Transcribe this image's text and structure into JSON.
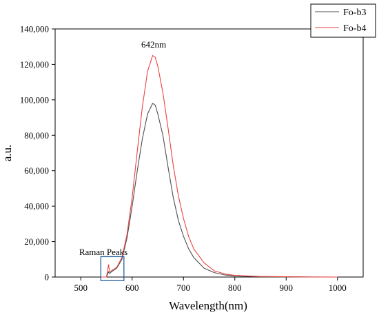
{
  "chart_data": {
    "type": "line",
    "xlabel": "Wavelength(nm)",
    "ylabel": "a.u.",
    "xlim": [
      450,
      1050
    ],
    "ylim": [
      0,
      140000
    ],
    "x_ticks": [
      500,
      600,
      700,
      800,
      900,
      1000
    ],
    "x_tick_labels": [
      "500",
      "600",
      "700",
      "800",
      "900",
      "1000"
    ],
    "y_ticks": [
      0,
      20000,
      40000,
      60000,
      80000,
      100000,
      120000,
      140000
    ],
    "y_tick_labels": [
      "0",
      "20,000",
      "40,000",
      "60,000",
      "80,000",
      "100,000",
      "120,000",
      "140,000"
    ],
    "grid": false,
    "legend_position": "top-right",
    "series": [
      {
        "name": "Fo-b3",
        "color": "#4d4d4d",
        "x": [
          540,
          550,
          554,
          556,
          560,
          570,
          580,
          590,
          600,
          610,
          620,
          630,
          640,
          645,
          650,
          660,
          670,
          680,
          690,
          700,
          710,
          720,
          740,
          760,
          780,
          800,
          850,
          900,
          950,
          1000
        ],
        "y": [
          0,
          0,
          3000,
          2000,
          3000,
          5000,
          10000,
          22000,
          40000,
          60000,
          78000,
          92000,
          98000,
          97000,
          92000,
          80000,
          62000,
          45000,
          32000,
          23000,
          16000,
          11000,
          5000,
          2500,
          1200,
          600,
          200,
          100,
          50,
          0
        ]
      },
      {
        "name": "Fo-b4",
        "color": "#e8413f",
        "x": [
          540,
          550,
          554,
          556,
          560,
          570,
          580,
          590,
          600,
          610,
          620,
          630,
          640,
          645,
          650,
          660,
          670,
          680,
          690,
          700,
          710,
          720,
          740,
          760,
          780,
          800,
          850,
          900,
          950,
          1000
        ],
        "y": [
          0,
          0,
          7000,
          3000,
          3500,
          5500,
          11000,
          24000,
          45000,
          71000,
          96000,
          116000,
          125000,
          124000,
          119000,
          104000,
          84000,
          63000,
          46000,
          33000,
          23000,
          16000,
          8000,
          3500,
          1800,
          900,
          300,
          150,
          50,
          0
        ]
      }
    ],
    "annotations": [
      {
        "text": "642nm",
        "x": 642,
        "y": 129500
      },
      {
        "text": "Raman Peaks",
        "x": 540,
        "y": 12500
      }
    ],
    "highlight_box": {
      "x": [
        539,
        584
      ],
      "y": [
        -2000,
        11500
      ],
      "color": "#1f5fa0"
    }
  }
}
